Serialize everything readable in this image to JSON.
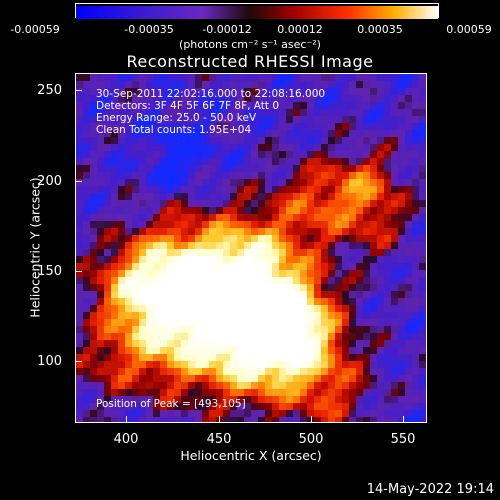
{
  "colorbar": {
    "ticks": [
      "-0.00059",
      "-0.00035",
      "-0.00012",
      "0.00012",
      "0.00035",
      "0.00059"
    ],
    "units": "(photons cm⁻² s⁻¹ asec⁻²)"
  },
  "title": "Reconstructed RHESSI Image",
  "annotations": {
    "time": "30-Sep-2011 22:02:16.000 to 22:08:16.000",
    "detectors": "Detectors: 3F 4F 5F 6F 7F 8F, Att 0",
    "energy": "Energy Range: 25.0 - 50.0 keV",
    "method": "Clean     Total counts: 1.95E+04",
    "peak": "Position of Peak = [493,105]"
  },
  "axes": {
    "xlabel": "Heliocentric X (arcsec)",
    "ylabel": "Heliocentric Y (arcsec)",
    "xticks": [
      "400",
      "450",
      "500",
      "550"
    ],
    "yticks": [
      "100",
      "150",
      "200",
      "250"
    ],
    "xrange": [
      370,
      562
    ],
    "yrange": [
      65,
      256
    ]
  },
  "footer": "14-May-2022 19:14",
  "colors": {
    "background": "#000000",
    "map_low": "#1030ff",
    "map_mid": "#5a1fb0",
    "map_high": "#ff2000",
    "map_peak": "#ffffe0"
  }
}
